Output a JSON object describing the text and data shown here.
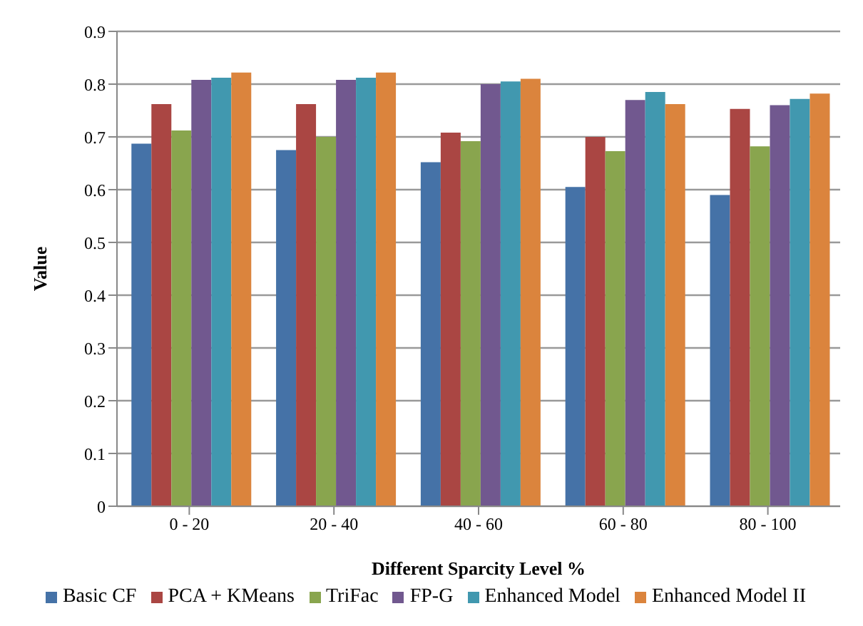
{
  "chart_data": {
    "type": "bar",
    "xlabel": "Different Sparcity Level %",
    "ylabel": "Value",
    "categories": [
      "0 - 20",
      "20 - 40",
      "40 - 60",
      "60 - 80",
      "80 - 100"
    ],
    "series": [
      {
        "name": "Basic CF",
        "color": "#4572a7",
        "values": [
          0.687,
          0.675,
          0.652,
          0.605,
          0.59
        ]
      },
      {
        "name": "PCA + KMeans",
        "color": "#aa4643",
        "values": [
          0.762,
          0.762,
          0.708,
          0.7,
          0.753
        ]
      },
      {
        "name": "TriFac",
        "color": "#89a54e",
        "values": [
          0.712,
          0.7,
          0.692,
          0.673,
          0.682
        ]
      },
      {
        "name": "FP-G",
        "color": "#71588f",
        "values": [
          0.808,
          0.808,
          0.8,
          0.77,
          0.76
        ]
      },
      {
        "name": "Enhanced Model",
        "color": "#4198af",
        "values": [
          0.812,
          0.812,
          0.805,
          0.785,
          0.772
        ]
      },
      {
        "name": "Enhanced Model II",
        "color": "#db843d",
        "values": [
          0.822,
          0.822,
          0.81,
          0.762,
          0.782
        ]
      }
    ],
    "ylim": [
      0,
      0.9
    ],
    "yticks": [
      0,
      0.1,
      0.2,
      0.3,
      0.4,
      0.5,
      0.6,
      0.7,
      0.8,
      0.9
    ],
    "grid": "y",
    "legend": "bottom"
  }
}
